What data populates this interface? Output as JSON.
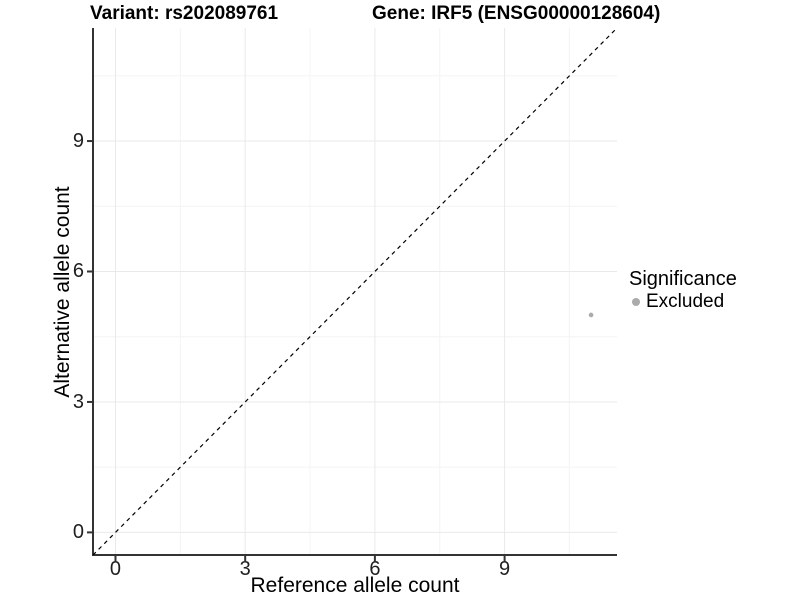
{
  "figure": {
    "title_left": "Variant: rs202089761",
    "title_right": "Gene: IRF5 (ENSG00000128604)"
  },
  "axes": {
    "x": {
      "title": "Reference allele count"
    },
    "y": {
      "title": "Alternative allele count"
    }
  },
  "legend": {
    "title": "Significance",
    "entries": [
      {
        "label": "Excluded",
        "color": "#ababab"
      }
    ]
  },
  "colors": {
    "grid_major": "#e9e9e9",
    "grid_minor": "#f4f4f4",
    "axis_line": "#333333",
    "tick_mark": "#333333",
    "tick_label": "#1f1f1f",
    "point": "#ababab",
    "reference_line": "#000000"
  },
  "chart_data": {
    "type": "scatter",
    "title": "Variant: rs202089761        Gene: IRF5 (ENSG00000128604)",
    "xlabel": "Reference allele count",
    "ylabel": "Alternative allele count",
    "xlim": [
      -0.52,
      11.6
    ],
    "ylim": [
      -0.52,
      11.6
    ],
    "x_ticks": [
      0,
      3,
      6,
      9
    ],
    "y_ticks": [
      0,
      3,
      6,
      9
    ],
    "x_minor_ticks": [
      1.5,
      4.5,
      7.5,
      10.5
    ],
    "y_minor_ticks": [
      1.5,
      4.5,
      7.5,
      10.5
    ],
    "grid": true,
    "legend_position": "right",
    "legend_title": "Significance",
    "series": [
      {
        "name": "Excluded",
        "color": "#ababab",
        "points": [
          {
            "x": 11,
            "y": 5
          }
        ]
      }
    ],
    "reference_line": {
      "type": "identity",
      "slope": 1,
      "intercept": 0,
      "style": "dashed",
      "color": "#000000"
    }
  }
}
